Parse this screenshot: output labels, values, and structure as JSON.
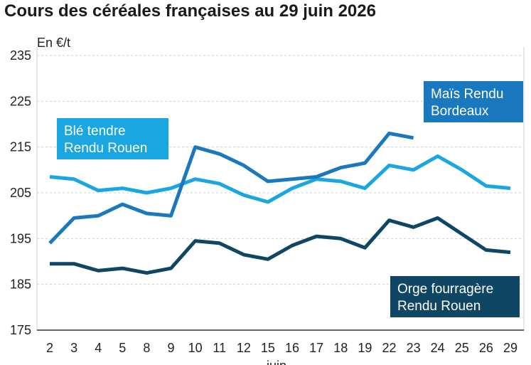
{
  "title": "Cours des céréales françaises au 29 juin 2026",
  "chart_data": {
    "type": "line",
    "title": "Cours des céréales françaises au 29 juin 2026",
    "ylabel": "En €/t",
    "xlabel": "juin",
    "ylim": [
      175,
      235
    ],
    "yticks": [
      175,
      185,
      195,
      205,
      215,
      225,
      235
    ],
    "grid": true,
    "categories": [
      "2",
      "3",
      "4",
      "5",
      "8",
      "9",
      "10",
      "11",
      "12",
      "15",
      "16",
      "17",
      "18",
      "19",
      "22",
      "23",
      "24",
      "25",
      "26",
      "29"
    ],
    "series": [
      {
        "name": "Blé tendre Rendu Rouen",
        "label_lines": [
          "Blé tendre",
          "Rendu Rouen"
        ],
        "color": "#1aa6e0",
        "values": [
          208.5,
          208,
          205.5,
          206,
          205,
          206,
          208,
          207,
          204.5,
          203,
          206,
          208,
          207.5,
          206,
          211,
          210,
          213,
          210,
          206.5,
          206
        ]
      },
      {
        "name": "Maïs Rendu Bordeaux",
        "label_lines": [
          "Maïs Rendu",
          "Bordeaux"
        ],
        "color": "#1a78be",
        "values": [
          194,
          199.5,
          200,
          202.5,
          200.5,
          200,
          215,
          213.5,
          211,
          207.5,
          208,
          208.5,
          210.5,
          211.5,
          218,
          217,
          null,
          null,
          null,
          null
        ]
      },
      {
        "name": "Orge fourragère Rendu Rouen",
        "label_lines": [
          "Orge fourragère",
          "Rendu Rouen"
        ],
        "color": "#0f4664",
        "values": [
          189.5,
          189.5,
          188,
          188.5,
          187.5,
          188.5,
          194.5,
          194,
          191.5,
          190.5,
          193.5,
          195.5,
          195,
          193,
          199,
          197.5,
          199.5,
          196,
          192.5,
          192
        ]
      }
    ]
  }
}
